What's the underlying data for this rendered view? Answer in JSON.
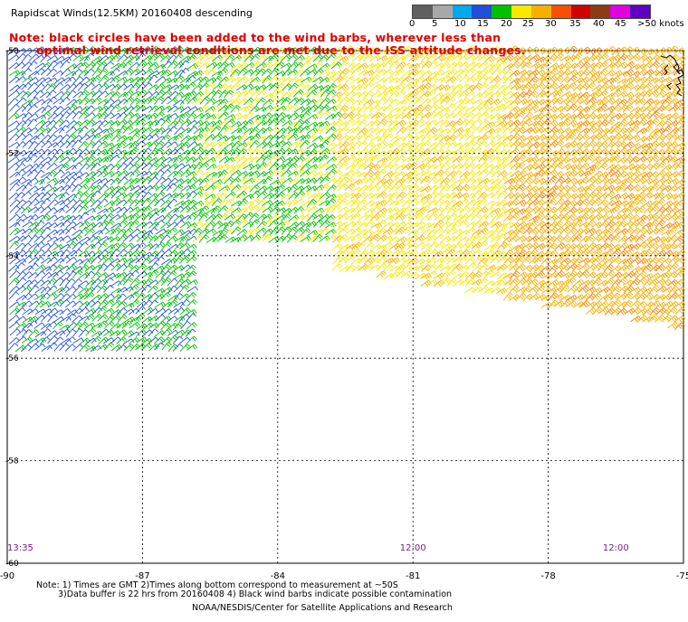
{
  "header": {
    "title": "Rapidscat Winds(12.5KM) 20160408 descending",
    "note_line1": "Note: black circles have been added to the wind barbs, wherever less than",
    "note_line2": "optimal wind retrieval conditions are met due to the ISS attitude changes."
  },
  "legend": {
    "labels": [
      "0",
      "5",
      "10",
      "15",
      "20",
      "25",
      "30",
      "35",
      "40",
      "45",
      ">50 knots"
    ],
    "colors": [
      "#606060",
      "#a8a8a8",
      "#00a8f0",
      "#2050d8",
      "#00c000",
      "#f8e800",
      "#f8b000",
      "#f85000",
      "#d00000",
      "#8c3c14",
      "#e000e0",
      "#6000c0"
    ]
  },
  "chart_data": {
    "type": "wind-barb-map",
    "title": "Rapidscat Winds(12.5KM) 20160408 descending",
    "x_ticks": [
      "-90",
      "-87",
      "-84",
      "-81",
      "-78",
      "-75"
    ],
    "y_ticks": [
      "-50",
      "-52",
      "-54",
      "-56",
      "-58",
      "-60"
    ],
    "xlim": [
      -90,
      -75
    ],
    "ylim": [
      -60,
      -50
    ],
    "grid": true,
    "time_labels": [
      {
        "label": "13:35",
        "lon": -90
      },
      {
        "label": "12:00",
        "lon": -81
      },
      {
        "label": "12:00",
        "lon": -76.5
      }
    ],
    "wind_regions": [
      {
        "lon": [
          -90,
          -86
        ],
        "lat": [
          -55.9,
          -50
        ],
        "speed_kt": [
          10,
          20
        ]
      },
      {
        "lon": [
          -86,
          -82.8
        ],
        "lat": [
          -53.8,
          -50
        ],
        "speed_kt": [
          15,
          20
        ]
      },
      {
        "lon": [
          -82.8,
          -75
        ],
        "lat": [
          -55.5,
          -50
        ],
        "speed_kt": [
          20,
          35
        ]
      }
    ]
  },
  "footer": {
    "line1": "Note: 1) Times are GMT 2)Times along bottom correspond to measurement at ~50S",
    "line2": "3)Data buffer is 22 hrs from 20160408 4) Black wind barbs indicate possible contamination",
    "credit": "NOAA/NESDIS/Center for Satellite Applications and Research"
  }
}
